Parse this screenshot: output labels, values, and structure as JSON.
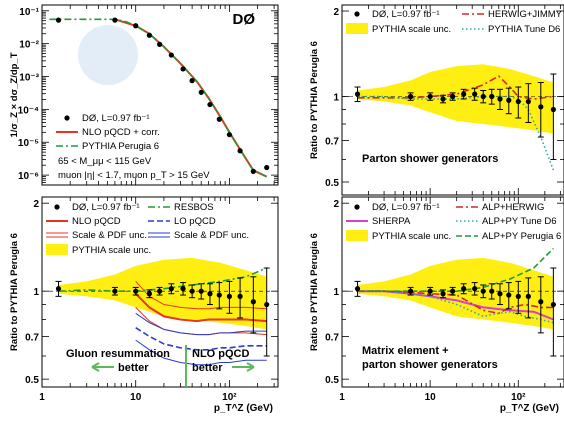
{
  "chart_data": [
    {
      "panel": "top-left",
      "type": "line",
      "experiment_label": "DØ",
      "ylabel": "1/σ_Z × dσ_Z/dp_T",
      "yscale": "log",
      "ylim": [
        5e-07,
        0.15
      ],
      "xscale": "log",
      "xlim": [
        1,
        330
      ],
      "y_ticks": [
        "10⁻¹",
        "10⁻²",
        "10⁻³",
        "10⁻⁴",
        "10⁻⁵",
        "10⁻⁶"
      ],
      "y_tick_values": [
        0.1,
        0.01,
        0.001,
        0.0001,
        1e-05,
        1e-06
      ],
      "series": [
        {
          "name": "DØ, L=0.97 fb⁻¹",
          "style": "points",
          "color": "#000000",
          "x": [
            1.5,
            6,
            10,
            14,
            18,
            24,
            32,
            40,
            50,
            62,
            78,
            100,
            130,
            180,
            250
          ],
          "y": [
            0.052,
            0.052,
            0.035,
            0.018,
            0.0095,
            0.0045,
            0.0017,
            0.00075,
            0.00033,
            0.00014,
            5e-05,
            1.7e-05,
            5.5e-06,
            1.3e-06,
            1.7e-06
          ]
        },
        {
          "name": "NLO pQCD + corr.",
          "style": "solid",
          "color": "#e8351f",
          "x": [
            6,
            10,
            14,
            20,
            30,
            45,
            60,
            80,
            100,
            130,
            180,
            250
          ],
          "y": [
            0.055,
            0.035,
            0.02,
            0.008,
            0.0025,
            0.0007,
            0.00022,
            6e-05,
            2e-05,
            6e-06,
            1.4e-06,
            9e-07
          ]
        },
        {
          "name": "PYTHIA Perugia 6",
          "style": "dashdot",
          "color": "#1f9b3a",
          "x": [
            1.2,
            2,
            3,
            4,
            5,
            6,
            8,
            10,
            14,
            20,
            30,
            45,
            60,
            80,
            100,
            130,
            180,
            250
          ],
          "y": [
            0.055,
            0.055,
            0.055,
            0.055,
            0.055,
            0.055,
            0.046,
            0.035,
            0.02,
            0.008,
            0.0025,
            0.0007,
            0.00022,
            6e-05,
            2e-05,
            6e-06,
            1.4e-06,
            9e-07
          ]
        }
      ],
      "annotations": [
        "65 < M_μμ < 115 GeV",
        "muon |η| < 1.7, muon p_T > 15 GeV"
      ]
    },
    {
      "panel": "top-right",
      "type": "line",
      "ylabel": "Ratio to PYTHIA Perugia 6",
      "ylim": [
        0.45,
        2.1
      ],
      "yscale": "log",
      "xlim": [
        1,
        330
      ],
      "xscale": "log",
      "y_ticks": [
        "0.5",
        "0.7",
        "1",
        "2"
      ],
      "y_tick_values": [
        0.5,
        0.7,
        1,
        2
      ],
      "annotation": "Parton shower generators",
      "series": [
        {
          "name": "DØ, L=0.97 fb⁻¹",
          "style": "points",
          "color": "#000000",
          "x": [
            1.5,
            6,
            10,
            14,
            18,
            24,
            32,
            40,
            50,
            62,
            78,
            100,
            130,
            180,
            250
          ],
          "y": [
            1.02,
            1.0,
            1.0,
            0.98,
            1.0,
            1.02,
            1.02,
            1.0,
            1.0,
            0.98,
            0.97,
            0.96,
            0.96,
            0.92,
            0.9
          ],
          "err": [
            0.06,
            0.03,
            0.03,
            0.03,
            0.03,
            0.04,
            0.05,
            0.05,
            0.06,
            0.08,
            0.1,
            0.12,
            0.15,
            0.2,
            0.3
          ]
        },
        {
          "name": "HERWIG+JIMMY",
          "style": "dashdot",
          "color": "#d62728",
          "x": [
            1.5,
            3,
            6,
            10,
            20,
            40,
            60,
            80,
            100,
            150,
            250
          ],
          "y": [
            0.99,
            0.99,
            0.99,
            1.0,
            1.02,
            1.1,
            1.18,
            1.08,
            1.0,
            0.98,
            1.0
          ]
        },
        {
          "name": "PYTHIA Tune D6",
          "style": "dotted",
          "color": "#2fa6b8",
          "x": [
            1.5,
            3,
            6,
            10,
            20,
            40,
            80,
            100,
            130,
            180,
            250
          ],
          "y": [
            1.0,
            1.0,
            0.98,
            0.98,
            0.98,
            1.0,
            1.0,
            0.98,
            0.9,
            0.72,
            0.55
          ]
        },
        {
          "name": "PYTHIA scale unc.",
          "style": "band",
          "color": "#ffee11",
          "x": [
            1.5,
            3,
            6,
            10,
            20,
            40,
            80,
            150,
            250
          ],
          "low": [
            0.98,
            0.96,
            0.93,
            0.88,
            0.82,
            0.8,
            0.78,
            0.76,
            0.74
          ],
          "high": [
            1.05,
            1.08,
            1.14,
            1.22,
            1.28,
            1.3,
            1.25,
            1.18,
            1.12
          ]
        }
      ]
    },
    {
      "panel": "bottom-left",
      "type": "line",
      "ylabel": "Ratio to PYTHIA Perugia 6",
      "ylim": [
        0.47,
        2.1
      ],
      "yscale": "log",
      "xlim": [
        1,
        330
      ],
      "xscale": "log",
      "xlabel": "p_T^Z (GeV)",
      "x_ticks": [
        "1",
        "10",
        "10²"
      ],
      "x_tick_values": [
        1,
        10,
        100
      ],
      "y_ticks": [
        "0.5",
        "0.7",
        "1",
        "2"
      ],
      "y_tick_values": [
        0.5,
        0.7,
        1,
        2
      ],
      "annotations": [
        "Gluon resummation",
        "better",
        "NLO pQCD",
        "better"
      ],
      "series": [
        {
          "name": "DØ, L=0.97 fb⁻¹",
          "style": "points",
          "color": "#000000",
          "x": [
            1.5,
            6,
            10,
            14,
            18,
            24,
            32,
            40,
            50,
            62,
            78,
            100,
            130,
            180,
            250
          ],
          "y": [
            1.02,
            1.0,
            1.0,
            0.98,
            1.0,
            1.02,
            1.02,
            1.0,
            1.0,
            0.98,
            0.97,
            0.96,
            0.96,
            0.92,
            0.9
          ],
          "err": [
            0.06,
            0.03,
            0.03,
            0.03,
            0.03,
            0.04,
            0.05,
            0.05,
            0.06,
            0.08,
            0.1,
            0.12,
            0.15,
            0.2,
            0.3
          ]
        },
        {
          "name": "NLO pQCD",
          "style": "solid",
          "color": "#e8351f",
          "x": [
            10,
            14,
            20,
            30,
            45,
            60,
            80,
            100,
            150,
            250
          ],
          "y": [
            0.98,
            0.88,
            0.82,
            0.8,
            0.79,
            0.8,
            0.8,
            0.8,
            0.8,
            0.79
          ]
        },
        {
          "name": "Scale & PDF unc. (NLO pQCD)",
          "style": "band-lines",
          "color": "#e8351f",
          "x": [
            10,
            14,
            20,
            30,
            45,
            60,
            80,
            100,
            150,
            250
          ],
          "low": [
            0.88,
            0.79,
            0.74,
            0.72,
            0.71,
            0.71,
            0.72,
            0.72,
            0.72,
            0.71
          ],
          "high": [
            1.08,
            0.96,
            0.9,
            0.88,
            0.87,
            0.87,
            0.88,
            0.88,
            0.88,
            0.87
          ]
        },
        {
          "name": "RESBOS",
          "style": "dashdot",
          "color": "#1f9b3a",
          "x": [
            1.5,
            3,
            6,
            10,
            20,
            40,
            80,
            150,
            250
          ],
          "y": [
            1.0,
            1.01,
            1.0,
            1.0,
            1.02,
            1.05,
            1.08,
            1.12,
            1.2
          ]
        },
        {
          "name": "LO pQCD",
          "style": "dashed",
          "color": "#2a3ccf",
          "x": [
            10,
            14,
            20,
            30,
            45,
            60,
            80,
            100,
            150,
            250
          ],
          "y": [
            0.75,
            0.7,
            0.66,
            0.64,
            0.63,
            0.63,
            0.64,
            0.64,
            0.65,
            0.65
          ]
        },
        {
          "name": "Scale & PDF unc. (LO pQCD)",
          "style": "band-lines",
          "color": "#2a3ccf",
          "x": [
            10,
            14,
            20,
            30,
            45,
            60,
            80,
            100,
            150,
            250
          ],
          "low": [
            0.68,
            0.63,
            0.59,
            0.57,
            0.56,
            0.56,
            0.57,
            0.57,
            0.58,
            0.58
          ],
          "high": [
            0.84,
            0.78,
            0.74,
            0.72,
            0.71,
            0.71,
            0.72,
            0.72,
            0.73,
            0.73
          ]
        },
        {
          "name": "PYTHIA scale unc.",
          "style": "band",
          "color": "#ffee11",
          "x": [
            1.5,
            3,
            6,
            10,
            20,
            40,
            80,
            150,
            250
          ],
          "low": [
            0.98,
            0.96,
            0.93,
            0.88,
            0.82,
            0.8,
            0.78,
            0.76,
            0.74
          ],
          "high": [
            1.05,
            1.08,
            1.14,
            1.22,
            1.28,
            1.3,
            1.25,
            1.18,
            1.12
          ]
        }
      ]
    },
    {
      "panel": "bottom-right",
      "type": "line",
      "ylabel": "Ratio to PYTHIA Perugia 6",
      "ylim": [
        0.47,
        2.1
      ],
      "yscale": "log",
      "xlim": [
        1,
        330
      ],
      "xscale": "log",
      "xlabel": "p_T^Z (GeV)",
      "x_ticks": [
        "1",
        "10",
        "10²"
      ],
      "x_tick_values": [
        1,
        10,
        100
      ],
      "y_ticks": [
        "0.5",
        "0.7",
        "1",
        "2"
      ],
      "y_tick_values": [
        0.5,
        0.7,
        1,
        2
      ],
      "annotation": [
        "Matrix element +",
        "parton shower generators"
      ],
      "series": [
        {
          "name": "DØ, L=0.97 fb⁻¹",
          "style": "points",
          "color": "#000000",
          "x": [
            1.5,
            6,
            10,
            14,
            18,
            24,
            32,
            40,
            50,
            62,
            78,
            100,
            130,
            180,
            250
          ],
          "y": [
            1.02,
            1.0,
            1.0,
            0.98,
            1.0,
            1.02,
            1.02,
            1.0,
            1.0,
            0.98,
            0.97,
            0.96,
            0.96,
            0.92,
            0.9
          ],
          "err": [
            0.06,
            0.03,
            0.03,
            0.03,
            0.03,
            0.04,
            0.05,
            0.05,
            0.06,
            0.08,
            0.1,
            0.12,
            0.15,
            0.2,
            0.3
          ]
        },
        {
          "name": "SHERPA",
          "style": "solid",
          "color": "#d43fd4",
          "x": [
            1.5,
            3,
            6,
            10,
            20,
            40,
            80,
            150,
            250
          ],
          "y": [
            1.0,
            1.0,
            0.98,
            0.96,
            0.93,
            0.88,
            0.86,
            0.85,
            0.8
          ]
        },
        {
          "name": "ALP+HERWIG",
          "style": "dashdot",
          "color": "#d62728",
          "x": [
            1.5,
            3,
            6,
            10,
            20,
            40,
            60,
            80,
            120,
            180,
            250
          ],
          "y": [
            1.0,
            1.0,
            0.99,
            0.98,
            0.97,
            0.86,
            0.84,
            0.88,
            0.9,
            0.88,
            0.88
          ]
        },
        {
          "name": "ALP+PY Tune D6",
          "style": "dotted",
          "color": "#2fa6b8",
          "x": [
            1.5,
            3,
            6,
            10,
            20,
            40,
            60,
            80,
            120,
            180,
            250
          ],
          "y": [
            1.0,
            1.0,
            0.98,
            0.96,
            0.9,
            0.82,
            0.84,
            0.85,
            0.82,
            0.8,
            0.78
          ]
        },
        {
          "name": "ALP+PY Perugia 6",
          "style": "dashed",
          "color": "#1f9b3a",
          "x": [
            1.5,
            3,
            6,
            10,
            20,
            40,
            80,
            150,
            250
          ],
          "y": [
            1.0,
            1.0,
            1.0,
            1.0,
            1.0,
            1.03,
            1.1,
            1.2,
            1.4
          ]
        },
        {
          "name": "PYTHIA scale unc.",
          "style": "band",
          "color": "#ffee11",
          "x": [
            1.5,
            3,
            6,
            10,
            20,
            40,
            80,
            150,
            250
          ],
          "low": [
            0.98,
            0.96,
            0.93,
            0.88,
            0.82,
            0.8,
            0.78,
            0.76,
            0.74
          ],
          "high": [
            1.05,
            1.08,
            1.14,
            1.22,
            1.28,
            1.3,
            1.25,
            1.18,
            1.12
          ]
        }
      ]
    }
  ]
}
